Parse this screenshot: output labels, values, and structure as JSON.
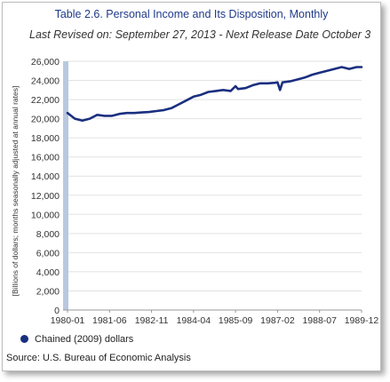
{
  "chart_data": {
    "type": "line",
    "title": "Table 2.6. Personal Income and Its Disposition, Monthly",
    "subtitle": "Last Revised on: September 27, 2013 - Next Release Date October 3",
    "ylabel": "[Billions of dollars; months seasonally adjusted at annual rates]",
    "ylim": [
      0,
      26000
    ],
    "yticks": [
      "0",
      "2,000",
      "4,000",
      "6,000",
      "8,000",
      "10,000",
      "12,000",
      "14,000",
      "16,000",
      "18,000",
      "20,000",
      "22,000",
      "24,000",
      "26,000"
    ],
    "ytick_values": [
      0,
      2000,
      4000,
      6000,
      8000,
      10000,
      12000,
      14000,
      16000,
      18000,
      20000,
      22000,
      24000,
      26000
    ],
    "xticks": [
      "1980-01",
      "1981-06",
      "1982-11",
      "1984-04",
      "1985-09",
      "1987-02",
      "1988-07",
      "1989-12"
    ],
    "grid": true,
    "legend_position": "bottom-left",
    "series": [
      {
        "name": "Chained (2009) dollars",
        "color": "#1a2f80",
        "x_months": [
          0,
          3,
          6,
          9,
          12,
          15,
          18,
          21,
          24,
          27,
          30,
          33,
          36,
          39,
          42,
          45,
          48,
          51,
          54,
          57,
          60,
          63,
          66,
          68,
          69,
          72,
          75,
          78,
          81,
          84,
          85,
          86,
          87,
          90,
          93,
          96,
          99,
          102,
          105,
          108,
          111,
          114,
          117,
          119
        ],
        "values": [
          20600,
          20000,
          19800,
          20000,
          20400,
          20300,
          20300,
          20500,
          20600,
          20600,
          20650,
          20700,
          20800,
          20900,
          21100,
          21500,
          21900,
          22300,
          22500,
          22800,
          22900,
          23000,
          22900,
          23400,
          23100,
          23200,
          23500,
          23700,
          23700,
          23750,
          23800,
          23000,
          23800,
          23900,
          24100,
          24300,
          24600,
          24800,
          25000,
          25200,
          25400,
          25200,
          25400,
          25400
        ]
      }
    ]
  },
  "legend": {
    "label": "Chained (2009) dollars"
  },
  "source": {
    "text": "Source: U.S. Bureau of Economic Analysis"
  }
}
